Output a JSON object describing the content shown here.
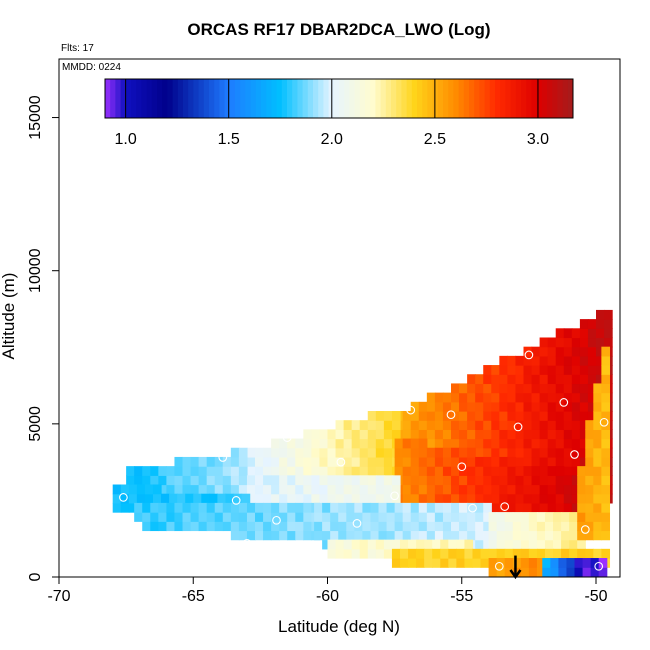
{
  "chart_data": {
    "type": "heatmap",
    "title": "ORCAS RF17 DBAR2DCA_LWO (Log)",
    "flights_label": "Flts: 17",
    "date_label": "MMDD: 0224",
    "xlabel": "Latitude (deg N)",
    "ylabel": "Altitude (m)",
    "xlim": [
      -70,
      -49
    ],
    "ylim": [
      0,
      16800
    ],
    "x_ticks": [
      -70,
      -65,
      -60,
      -55,
      -50
    ],
    "x_tick_labels": [
      "-70",
      "-65",
      "-60",
      "-55",
      "-50"
    ],
    "y_ticks": [
      0,
      5000,
      10000,
      15000
    ],
    "y_tick_labels": [
      "0",
      "5000",
      "10000",
      "15000"
    ],
    "colorbar": {
      "range": [
        0.9,
        3.17
      ],
      "ticks": [
        1.0,
        1.5,
        2.0,
        2.5,
        3.0
      ],
      "tick_labels": [
        "1.0",
        "1.5",
        "2.0",
        "2.5",
        "3.0"
      ],
      "stops": [
        {
          "v": 0.9,
          "color": "#9b30ff"
        },
        {
          "v": 1.0,
          "color": "#1010c0"
        },
        {
          "v": 1.2,
          "color": "#00008b"
        },
        {
          "v": 1.5,
          "color": "#1e7bff"
        },
        {
          "v": 1.75,
          "color": "#00bfff"
        },
        {
          "v": 2.0,
          "color": "#e6f4ff"
        },
        {
          "v": 2.2,
          "color": "#fffccf"
        },
        {
          "v": 2.4,
          "color": "#ffd41a"
        },
        {
          "v": 2.6,
          "color": "#ff8c00"
        },
        {
          "v": 2.8,
          "color": "#ff2a00"
        },
        {
          "v": 3.0,
          "color": "#dd0000"
        },
        {
          "v": 3.17,
          "color": "#a51c1c"
        }
      ]
    },
    "cell_size": {
      "lat": 0.3,
      "alt": 300
    },
    "regions": [
      {
        "name": "upper-red-wedge",
        "lat_start": -57.5,
        "lat_end": -49.5,
        "top_start": 5200,
        "top_end": 8700,
        "bottom_start": 4400,
        "bottom_end": 2400,
        "value_start": 2.5,
        "value_end": 3.1
      },
      {
        "name": "mid-yellow-band",
        "lat_start": -63.0,
        "lat_end": -57.5,
        "top_start": 4000,
        "top_end": 5400,
        "bottom_start": 2900,
        "bottom_end": 3200,
        "value_start": 2.0,
        "value_end": 2.4
      },
      {
        "name": "mid-orange-red-band",
        "lat_start": -57.5,
        "lat_end": -50.8,
        "top_start": 4400,
        "top_end": 3200,
        "bottom_start": 2300,
        "bottom_end": 2100,
        "value_start": 2.6,
        "value_end": 3.05
      },
      {
        "name": "upper-cyan-layer",
        "lat_start": -67.5,
        "lat_end": -63.0,
        "top_start": 3400,
        "top_end": 4000,
        "bottom_start": 2500,
        "bottom_end": 2700,
        "value_start": 1.75,
        "value_end": 1.95
      },
      {
        "name": "white-core",
        "lat_start": -63.0,
        "lat_end": -57.5,
        "top_start": 3300,
        "top_end": 3100,
        "bottom_start": 2500,
        "bottom_end": 2300,
        "value_start": 2.0,
        "value_end": 2.1
      },
      {
        "name": "mid-cyan-stripe",
        "lat_start": -68.0,
        "lat_end": -63.0,
        "top_start": 2800,
        "top_end": 2500,
        "bottom_start": 2300,
        "bottom_end": 2200,
        "value_start": 1.75,
        "value_end": 1.8
      },
      {
        "name": "lower-blue-layer",
        "lat_start": -67.2,
        "lat_end": -60.5,
        "top_start": 2400,
        "top_end": 2300,
        "bottom_start": 1800,
        "bottom_end": 1200,
        "value_start": 1.8,
        "value_end": 1.9
      },
      {
        "name": "lower-light-blue-layer",
        "lat_start": -60.5,
        "lat_end": -54.0,
        "top_start": 2300,
        "top_end": 2100,
        "bottom_start": 1200,
        "bottom_end": 1100,
        "value_start": 1.9,
        "value_end": 1.98
      },
      {
        "name": "lower-white-layer",
        "lat_start": -54.0,
        "lat_end": -50.5,
        "top_start": 2100,
        "top_end": 1900,
        "bottom_start": 1100,
        "bottom_end": 1100,
        "value_start": 2.1,
        "value_end": 2.3
      },
      {
        "name": "bottom-white-strip",
        "lat_start": -60.0,
        "lat_end": -54.6,
        "top_start": 1000,
        "top_end": 1000,
        "bottom_start": 800,
        "bottom_end": 800,
        "value_start": 2.15,
        "value_end": 2.25
      },
      {
        "name": "right-edge-orange",
        "lat_start": -50.7,
        "lat_end": -49.5,
        "top_start": 3600,
        "top_end": 8700,
        "bottom_start": 1200,
        "bottom_end": 1200,
        "value_start": 2.55,
        "value_end": 2.45
      },
      {
        "name": "surface-yellow-strip",
        "lat_start": -57.6,
        "lat_end": -49.7,
        "top_start": 800,
        "top_end": 800,
        "bottom_start": 500,
        "bottom_end": 500,
        "value_start": 2.4,
        "value_end": 2.4
      },
      {
        "name": "surface-orange-strip",
        "lat_start": -54.0,
        "lat_end": -52.0,
        "top_start": 500,
        "top_end": 500,
        "bottom_start": 200,
        "bottom_end": 200,
        "value_start": 2.55,
        "value_end": 2.6
      },
      {
        "name": "surface-cyan-strip",
        "lat_start": -52.0,
        "lat_end": -50.8,
        "top_start": 500,
        "top_end": 500,
        "bottom_start": 200,
        "bottom_end": 200,
        "value_start": 1.7,
        "value_end": 1.2
      },
      {
        "name": "surface-purple-strip",
        "lat_start": -50.8,
        "lat_end": -49.7,
        "top_start": 500,
        "top_end": 500,
        "bottom_start": 200,
        "bottom_end": 200,
        "value_start": 1.0,
        "value_end": 0.9
      }
    ],
    "points": [
      {
        "lat": -67.6,
        "alt": 2600
      },
      {
        "lat": -63.9,
        "alt": 3900
      },
      {
        "lat": -63.4,
        "alt": 2500
      },
      {
        "lat": -63.0,
        "alt": 1100
      },
      {
        "lat": -61.9,
        "alt": 1850
      },
      {
        "lat": -61.5,
        "alt": 4550
      },
      {
        "lat": -59.5,
        "alt": 3750
      },
      {
        "lat": -58.9,
        "alt": 1750
      },
      {
        "lat": -57.5,
        "alt": 2650
      },
      {
        "lat": -56.9,
        "alt": 5450
      },
      {
        "lat": -55.4,
        "alt": 5300
      },
      {
        "lat": -55.0,
        "alt": 3600
      },
      {
        "lat": -54.6,
        "alt": 2250
      },
      {
        "lat": -53.6,
        "alt": 350
      },
      {
        "lat": -53.4,
        "alt": 2300
      },
      {
        "lat": -52.9,
        "alt": 4900
      },
      {
        "lat": -52.5,
        "alt": 7250
      },
      {
        "lat": -51.2,
        "alt": 5700
      },
      {
        "lat": -50.8,
        "alt": 4000
      },
      {
        "lat": -50.4,
        "alt": 1550
      },
      {
        "lat": -49.7,
        "alt": 5050
      },
      {
        "lat": -49.9,
        "alt": 350
      }
    ],
    "arrow": {
      "lat": -53.0,
      "alt_top": 700,
      "alt_bottom": 0
    }
  }
}
